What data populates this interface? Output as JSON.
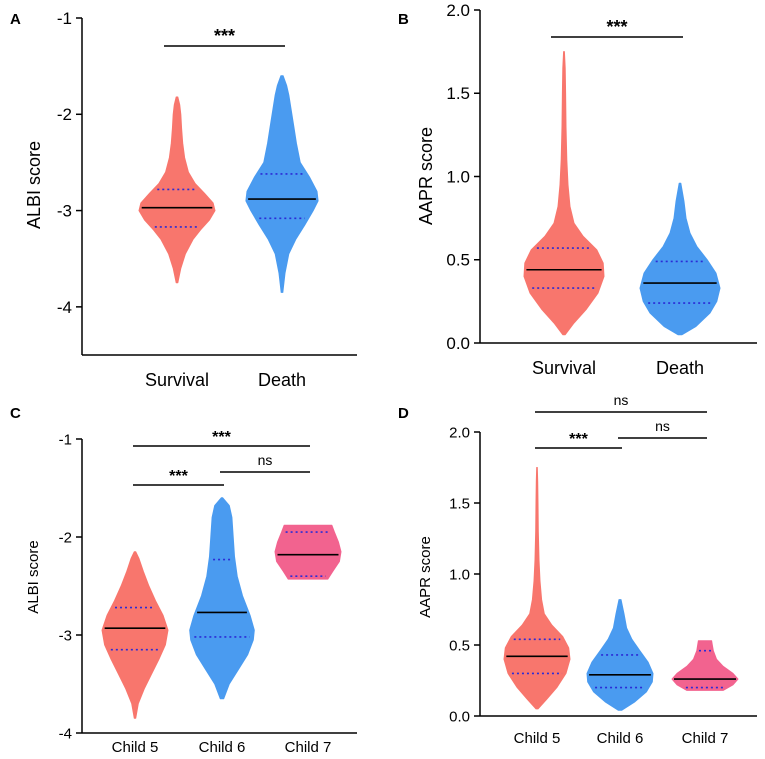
{
  "chart_data": [
    {
      "panel": "A",
      "type": "violin",
      "ylabel": "ALBI score",
      "ylim": [
        -4.5,
        -1
      ],
      "yticks": [
        -4,
        -3,
        -2,
        -1
      ],
      "categories": [
        "Survival",
        "Death"
      ],
      "colors": [
        "#F8766D",
        "#4A9BF0"
      ],
      "groups": [
        {
          "name": "Survival",
          "min": -3.75,
          "max": -1.82,
          "median": -2.97,
          "q1": -3.17,
          "q3": -2.78,
          "profile": [
            [
              -3.75,
              0.02
            ],
            [
              -3.6,
              0.1
            ],
            [
              -3.45,
              0.22
            ],
            [
              -3.3,
              0.42
            ],
            [
              -3.2,
              0.62
            ],
            [
              -3.1,
              0.85
            ],
            [
              -3.0,
              1.0
            ],
            [
              -2.92,
              0.95
            ],
            [
              -2.82,
              0.72
            ],
            [
              -2.72,
              0.48
            ],
            [
              -2.6,
              0.3
            ],
            [
              -2.45,
              0.2
            ],
            [
              -2.3,
              0.15
            ],
            [
              -2.15,
              0.12
            ],
            [
              -2.0,
              0.1
            ],
            [
              -1.9,
              0.07
            ],
            [
              -1.82,
              0.02
            ]
          ]
        },
        {
          "name": "Death",
          "min": -3.85,
          "max": -1.6,
          "median": -2.88,
          "q1": -3.08,
          "q3": -2.62,
          "profile": [
            [
              -3.85,
              0.02
            ],
            [
              -3.65,
              0.08
            ],
            [
              -3.45,
              0.18
            ],
            [
              -3.3,
              0.36
            ],
            [
              -3.15,
              0.6
            ],
            [
              -3.0,
              0.82
            ],
            [
              -2.9,
              0.95
            ],
            [
              -2.8,
              0.92
            ],
            [
              -2.65,
              0.72
            ],
            [
              -2.5,
              0.48
            ],
            [
              -2.3,
              0.38
            ],
            [
              -2.1,
              0.3
            ],
            [
              -1.95,
              0.24
            ],
            [
              -1.8,
              0.18
            ],
            [
              -1.7,
              0.12
            ],
            [
              -1.6,
              0.03
            ]
          ]
        }
      ],
      "comparisons": [
        {
          "from": "Survival",
          "to": "Death",
          "label": "***"
        }
      ]
    },
    {
      "panel": "B",
      "type": "violin",
      "ylabel": "AAPR score",
      "ylim": [
        0,
        2.0
      ],
      "yticks": [
        0.0,
        0.5,
        1.0,
        1.5,
        2.0
      ],
      "tick_labels": [
        "0.0",
        "0.5",
        "1.0",
        "1.5",
        "2.0"
      ],
      "categories": [
        "Survival",
        "Death"
      ],
      "colors": [
        "#F8766D",
        "#4A9BF0"
      ],
      "groups": [
        {
          "name": "Survival",
          "min": 0.05,
          "max": 1.75,
          "median": 0.44,
          "q1": 0.33,
          "q3": 0.57,
          "profile": [
            [
              0.05,
              0.03
            ],
            [
              0.12,
              0.25
            ],
            [
              0.2,
              0.55
            ],
            [
              0.3,
              0.85
            ],
            [
              0.4,
              1.0
            ],
            [
              0.48,
              0.98
            ],
            [
              0.56,
              0.82
            ],
            [
              0.64,
              0.48
            ],
            [
              0.72,
              0.25
            ],
            [
              0.82,
              0.15
            ],
            [
              0.95,
              0.1
            ],
            [
              1.1,
              0.07
            ],
            [
              1.3,
              0.05
            ],
            [
              1.5,
              0.04
            ],
            [
              1.65,
              0.03
            ],
            [
              1.75,
              0.01
            ]
          ]
        },
        {
          "name": "Death",
          "min": 0.05,
          "max": 0.96,
          "median": 0.36,
          "q1": 0.24,
          "q3": 0.49,
          "profile": [
            [
              0.05,
              0.05
            ],
            [
              0.1,
              0.4
            ],
            [
              0.18,
              0.75
            ],
            [
              0.25,
              0.92
            ],
            [
              0.33,
              1.0
            ],
            [
              0.42,
              0.9
            ],
            [
              0.5,
              0.68
            ],
            [
              0.58,
              0.42
            ],
            [
              0.66,
              0.25
            ],
            [
              0.75,
              0.15
            ],
            [
              0.85,
              0.1
            ],
            [
              0.96,
              0.02
            ]
          ]
        }
      ],
      "comparisons": [
        {
          "from": "Survival",
          "to": "Death",
          "label": "***"
        }
      ]
    },
    {
      "panel": "C",
      "type": "violin",
      "ylabel": "ALBI score",
      "ylim": [
        -4,
        -1
      ],
      "yticks": [
        -4,
        -3,
        -2,
        -1
      ],
      "categories": [
        "Child 5",
        "Child 6",
        "Child 7"
      ],
      "colors": [
        "#F8766D",
        "#4A9BF0",
        "#F2638F"
      ],
      "groups": [
        {
          "name": "Child 5",
          "min": -3.85,
          "max": -2.15,
          "median": -2.93,
          "q1": -3.15,
          "q3": -2.72,
          "profile": [
            [
              -3.85,
              0.02
            ],
            [
              -3.7,
              0.1
            ],
            [
              -3.55,
              0.28
            ],
            [
              -3.4,
              0.5
            ],
            [
              -3.25,
              0.72
            ],
            [
              -3.1,
              0.92
            ],
            [
              -2.95,
              1.0
            ],
            [
              -2.8,
              0.85
            ],
            [
              -2.65,
              0.62
            ],
            [
              -2.5,
              0.42
            ],
            [
              -2.35,
              0.25
            ],
            [
              -2.22,
              0.12
            ],
            [
              -2.15,
              0.02
            ]
          ]
        },
        {
          "name": "Child 6",
          "min": -3.65,
          "max": -1.6,
          "median": -2.77,
          "q1": -3.02,
          "q3": -2.23,
          "profile": [
            [
              -3.65,
              0.05
            ],
            [
              -3.5,
              0.22
            ],
            [
              -3.35,
              0.5
            ],
            [
              -3.2,
              0.78
            ],
            [
              -3.05,
              0.95
            ],
            [
              -2.95,
              0.98
            ],
            [
              -2.8,
              0.85
            ],
            [
              -2.6,
              0.62
            ],
            [
              -2.4,
              0.46
            ],
            [
              -2.2,
              0.38
            ],
            [
              -2.0,
              0.34
            ],
            [
              -1.8,
              0.3
            ],
            [
              -1.68,
              0.22
            ],
            [
              -1.6,
              0.02
            ]
          ]
        },
        {
          "name": "Child 7",
          "min": -2.43,
          "max": -1.88,
          "median": -2.18,
          "q1": -2.4,
          "q3": -1.95,
          "profile": [
            [
              -2.43,
              0.6
            ],
            [
              -2.35,
              0.75
            ],
            [
              -2.25,
              0.95
            ],
            [
              -2.15,
              1.0
            ],
            [
              -2.05,
              0.92
            ],
            [
              -1.95,
              0.8
            ],
            [
              -1.88,
              0.72
            ]
          ]
        }
      ],
      "comparisons": [
        {
          "from": "Child 5",
          "to": "Child 6",
          "label": "***"
        },
        {
          "from": "Child 6",
          "to": "Child 7",
          "label": "ns"
        },
        {
          "from": "Child 5",
          "to": "Child 7",
          "label": "***"
        }
      ]
    },
    {
      "panel": "D",
      "type": "violin",
      "ylabel": "AAPR score",
      "ylim": [
        0,
        2.0
      ],
      "yticks": [
        0.0,
        0.5,
        1.0,
        1.5,
        2.0
      ],
      "tick_labels": [
        "0.0",
        "0.5",
        "1.0",
        "1.5",
        "2.0"
      ],
      "categories": [
        "Child 5",
        "Child 6",
        "Child 7"
      ],
      "colors": [
        "#F8766D",
        "#4A9BF0",
        "#F2638F"
      ],
      "groups": [
        {
          "name": "Child 5",
          "min": 0.05,
          "max": 1.75,
          "median": 0.42,
          "q1": 0.3,
          "q3": 0.54,
          "profile": [
            [
              0.05,
              0.03
            ],
            [
              0.12,
              0.3
            ],
            [
              0.2,
              0.6
            ],
            [
              0.3,
              0.88
            ],
            [
              0.4,
              1.0
            ],
            [
              0.48,
              0.96
            ],
            [
              0.56,
              0.78
            ],
            [
              0.64,
              0.45
            ],
            [
              0.72,
              0.22
            ],
            [
              0.82,
              0.14
            ],
            [
              0.95,
              0.09
            ],
            [
              1.1,
              0.06
            ],
            [
              1.3,
              0.04
            ],
            [
              1.5,
              0.03
            ],
            [
              1.65,
              0.02
            ],
            [
              1.75,
              0.01
            ]
          ]
        },
        {
          "name": "Child 6",
          "min": 0.04,
          "max": 0.82,
          "median": 0.29,
          "q1": 0.2,
          "q3": 0.43,
          "profile": [
            [
              0.04,
              0.05
            ],
            [
              0.1,
              0.45
            ],
            [
              0.17,
              0.8
            ],
            [
              0.24,
              0.98
            ],
            [
              0.3,
              1.0
            ],
            [
              0.38,
              0.85
            ],
            [
              0.46,
              0.6
            ],
            [
              0.54,
              0.36
            ],
            [
              0.62,
              0.2
            ],
            [
              0.72,
              0.12
            ],
            [
              0.82,
              0.03
            ]
          ]
        },
        {
          "name": "Child 7",
          "min": 0.18,
          "max": 0.53,
          "median": 0.26,
          "q1": 0.2,
          "q3": 0.46,
          "profile": [
            [
              0.18,
              0.55
            ],
            [
              0.22,
              0.85
            ],
            [
              0.26,
              1.0
            ],
            [
              0.3,
              0.85
            ],
            [
              0.35,
              0.55
            ],
            [
              0.4,
              0.35
            ],
            [
              0.46,
              0.25
            ],
            [
              0.5,
              0.22
            ],
            [
              0.53,
              0.2
            ]
          ]
        }
      ],
      "comparisons": [
        {
          "from": "Child 5",
          "to": "Child 6",
          "label": "***"
        },
        {
          "from": "Child 6",
          "to": "Child 7",
          "label": "ns"
        },
        {
          "from": "Child 5",
          "to": "Child 7",
          "label": "ns"
        }
      ]
    }
  ]
}
